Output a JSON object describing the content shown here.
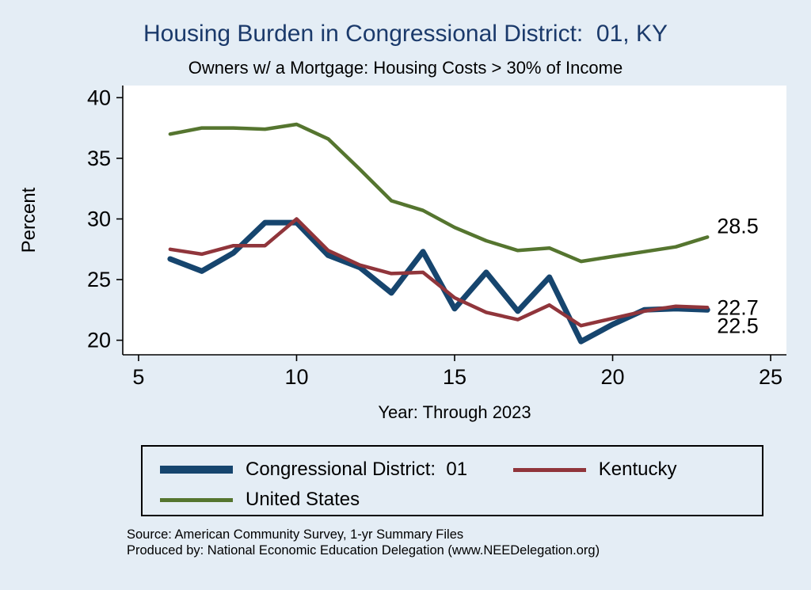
{
  "title": "Housing Burden in Congressional District:  01, KY",
  "subtitle": "Owners w/ a Mortgage: Housing Costs > 30% of Income",
  "footnotes": {
    "source": "Source: American Community Survey, 1-yr Summary Files",
    "produced_by": "Produced by: National Economic Education Delegation (www.NEEDelegation.org)"
  },
  "colors": {
    "background": "#e4edf5",
    "title": "#1b3a6b",
    "district": "#16456e",
    "kentucky": "#90353b",
    "united_states": "#55752f"
  },
  "chart_data": {
    "type": "line",
    "title": "Housing Burden in Congressional District:  01, KY",
    "subtitle": "Owners w/ a Mortgage: Housing Costs > 30% of Income",
    "xlabel": "Year: Through 2023",
    "ylabel": "Percent",
    "xticks": [
      5,
      10,
      15,
      20,
      25
    ],
    "yticks": [
      20,
      25,
      30,
      35,
      40
    ],
    "xlim": [
      4.5,
      25.5
    ],
    "ylim": [
      18.8,
      41.0
    ],
    "grid": false,
    "legend_position": "bottom",
    "x": [
      6,
      7,
      8,
      9,
      10,
      11,
      12,
      13,
      14,
      15,
      16,
      17,
      18,
      19,
      20,
      21,
      22,
      23
    ],
    "series": [
      {
        "name": "Congressional District:  01",
        "color": "#16456e",
        "width": 7,
        "values": [
          26.7,
          25.7,
          27.2,
          29.7,
          29.7,
          27.0,
          26.0,
          23.9,
          27.3,
          22.6,
          25.6,
          22.4,
          25.2,
          19.9,
          21.3,
          22.5,
          22.6,
          22.5
        ],
        "end_label": "22.5",
        "end_label_dy": 20
      },
      {
        "name": "Kentucky",
        "color": "#90353b",
        "width": 4.5,
        "values": [
          27.5,
          27.1,
          27.8,
          27.8,
          30.0,
          27.4,
          26.2,
          25.5,
          25.6,
          23.5,
          22.3,
          21.7,
          22.9,
          21.2,
          21.8,
          22.4,
          22.8,
          22.7
        ],
        "end_label": "22.7",
        "end_label_dy": 0
      },
      {
        "name": "United States",
        "color": "#55752f",
        "width": 4.5,
        "values": [
          37.0,
          37.5,
          37.5,
          37.4,
          37.8,
          36.6,
          34.1,
          31.5,
          30.7,
          29.3,
          28.2,
          27.4,
          27.6,
          26.5,
          26.9,
          27.3,
          27.7,
          28.5
        ],
        "end_label": "28.5",
        "end_label_dy": -14
      }
    ]
  }
}
